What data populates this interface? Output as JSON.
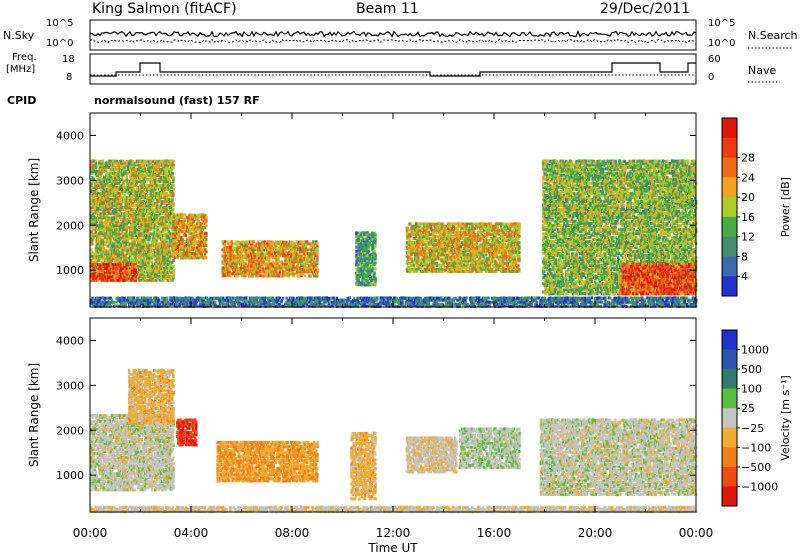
{
  "header": {
    "station": "King Salmon (fitACF)",
    "beam": "Beam 11",
    "date": "29/Dec/2011"
  },
  "small_panels": {
    "nsky_label": "N.Sky",
    "nsearch_label": "N.Search",
    "nsky_ticks": [
      "10^5",
      "10^0"
    ],
    "nsearch_ticks": [
      "10^5",
      "10^0"
    ],
    "freq_label_1": "Freq.",
    "freq_label_2": "[MHz]",
    "freq_ticks": [
      "18",
      "8"
    ],
    "nave_label": "Nave",
    "nave_ticks": [
      "60",
      "0"
    ],
    "cpid_label": "CPID",
    "cpid_text": "normalsound (fast) 157 RF"
  },
  "colors": {
    "power_scale": [
      "#2330d0",
      "#3a6ab0",
      "#3f8f6a",
      "#46ad46",
      "#a6cf2a",
      "#f2a21e",
      "#f36b14",
      "#ec3b10",
      "#e0150b"
    ],
    "velocity_scale": [
      "#2330d0",
      "#2f55b3",
      "#2f7d66",
      "#56bf3c",
      "#c4c4c0",
      "#f2aa30",
      "#f07e1c",
      "#ee4a12",
      "#e0150b"
    ]
  },
  "chart_data": [
    {
      "type": "heatmap",
      "name": "power-panel",
      "xlabel": "",
      "ylabel": "Slant Range [km]",
      "xlim": [
        0,
        24
      ],
      "ylim": [
        180,
        4500
      ],
      "y_ticks": [
        1000,
        2000,
        3000,
        4000
      ],
      "colorbar": {
        "label": "Power [dB]",
        "range": [
          0,
          32
        ],
        "ticks": [
          "4",
          "8",
          "12",
          "16",
          "20",
          "24",
          "28"
        ]
      },
      "regions": [
        {
          "t0": 0.0,
          "t1": 3.3,
          "r0": 800,
          "r1": 3500,
          "level": 16
        },
        {
          "t0": 0.0,
          "t1": 1.8,
          "r0": 800,
          "r1": 1200,
          "level": 26
        },
        {
          "t0": 3.3,
          "t1": 4.6,
          "r0": 1300,
          "r1": 2300,
          "level": 20
        },
        {
          "t0": 5.2,
          "t1": 9.0,
          "r0": 900,
          "r1": 1700,
          "level": 20
        },
        {
          "t0": 10.5,
          "t1": 11.3,
          "r0": 700,
          "r1": 1900,
          "level": 10
        },
        {
          "t0": 12.5,
          "t1": 17.0,
          "r0": 1000,
          "r1": 2100,
          "level": 18
        },
        {
          "t0": 17.9,
          "t1": 24.0,
          "r0": 500,
          "r1": 3500,
          "level": 14
        },
        {
          "t0": 21.0,
          "t1": 24.0,
          "r0": 500,
          "r1": 1200,
          "level": 26
        },
        {
          "t0": 0.0,
          "t1": 24.0,
          "r0": 180,
          "r1": 450,
          "level": 6
        }
      ]
    },
    {
      "type": "heatmap",
      "name": "velocity-panel",
      "xlabel": "Time UT",
      "ylabel": "Slant Range [km]",
      "xlim": [
        0,
        24
      ],
      "ylim": [
        180,
        4500
      ],
      "x_ticks": [
        "00:00",
        "04:00",
        "08:00",
        "12:00",
        "16:00",
        "20:00",
        "00:00"
      ],
      "y_ticks": [
        1000,
        2000,
        3000,
        4000
      ],
      "colorbar": {
        "label": "Velocity [m s⁻¹]",
        "range": [
          -1500,
          1500
        ],
        "ticks": [
          "1000",
          "500",
          "100",
          "25",
          "−25",
          "−100",
          "−500",
          "−1000"
        ]
      },
      "regions": [
        {
          "t0": 0.0,
          "t1": 3.3,
          "r0": 700,
          "r1": 2400,
          "level": 0
        },
        {
          "t0": 1.5,
          "t1": 3.3,
          "r0": 2200,
          "r1": 3400,
          "level": -300
        },
        {
          "t0": 3.4,
          "t1": 4.2,
          "r0": 1700,
          "r1": 2300,
          "level": -1100
        },
        {
          "t0": 5.0,
          "t1": 9.0,
          "r0": 900,
          "r1": 1800,
          "level": -450
        },
        {
          "t0": 10.3,
          "t1": 11.3,
          "r0": 500,
          "r1": 2000,
          "level": -300
        },
        {
          "t0": 12.5,
          "t1": 14.5,
          "r0": 1100,
          "r1": 1900,
          "level": -90
        },
        {
          "t0": 14.6,
          "t1": 17.0,
          "r0": 1200,
          "r1": 2100,
          "level": 60
        },
        {
          "t0": 17.8,
          "t1": 24.0,
          "r0": 600,
          "r1": 2300,
          "level": 0
        },
        {
          "t0": 0.0,
          "t1": 24.0,
          "r0": 180,
          "r1": 350,
          "level": -80
        }
      ]
    }
  ]
}
